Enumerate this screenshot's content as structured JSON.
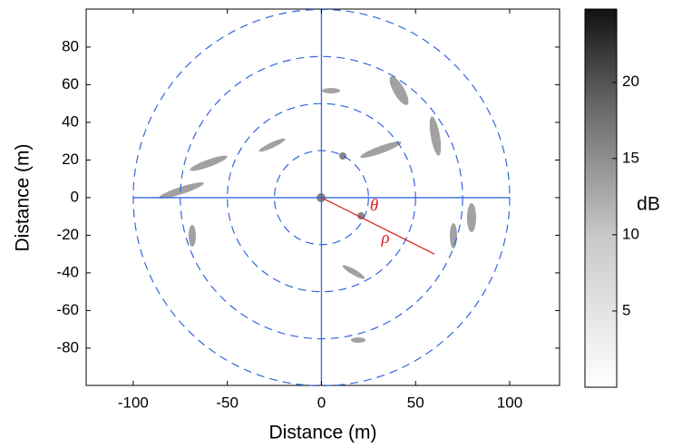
{
  "chart_data": {
    "type": "polar-image",
    "xlabel": "Distance (m)",
    "ylabel": "Distance (m)",
    "xlim": [
      -125,
      126.5
    ],
    "ylim": [
      -99.8,
      100.2
    ],
    "xticks": [
      -100,
      -50,
      0,
      50,
      100
    ],
    "yticks": [
      -80,
      -60,
      -40,
      -20,
      0,
      20,
      40,
      60,
      80
    ],
    "rings": [
      25,
      50,
      75,
      100
    ],
    "ring_color": "#3366dd",
    "line": {
      "x": [
        0,
        60
      ],
      "y": [
        0,
        -30
      ],
      "color": "#e02020"
    },
    "annotations": [
      {
        "text": "θ",
        "x": 28,
        "y": -5
      },
      {
        "text": "ρ",
        "x": 34,
        "y": -22
      }
    ],
    "colorbar": {
      "label": "dB",
      "clim": [
        0,
        24.8
      ],
      "ticks": [
        5,
        10,
        15,
        20
      ]
    }
  }
}
